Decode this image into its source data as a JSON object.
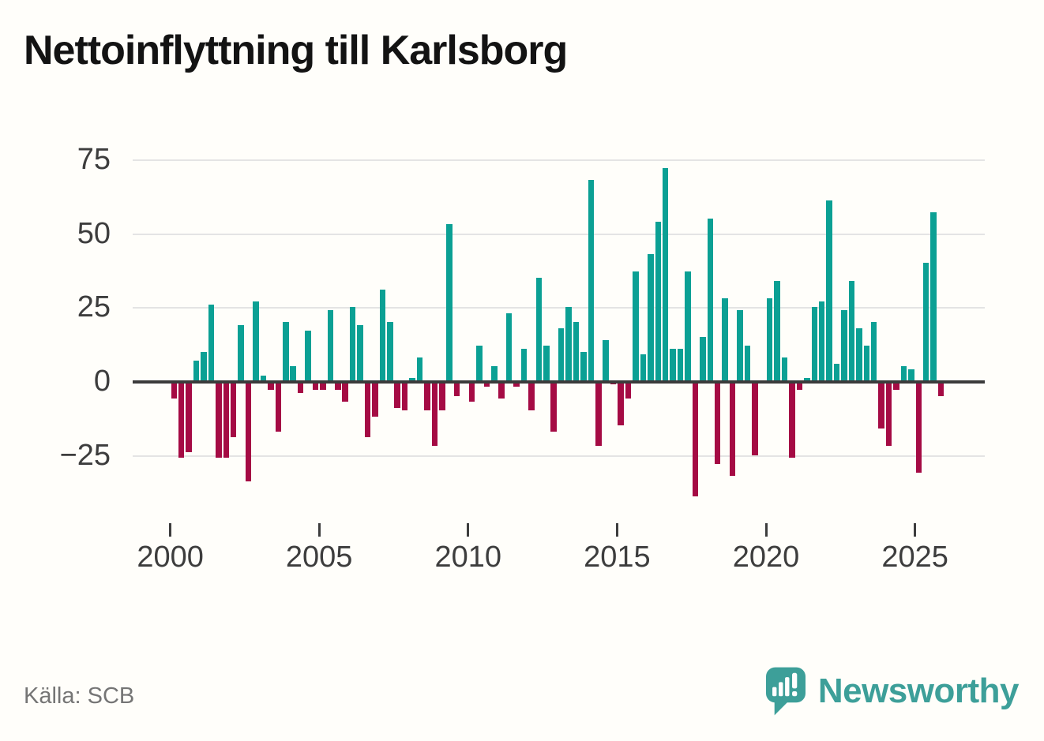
{
  "title": "Nettoinflyttning till Karlsborg",
  "source": "Källa: SCB",
  "brand": {
    "wordmark": "Newsworthy",
    "logo_icon": "bar-chart-speech-bubble-icon",
    "color": "#3d9f99"
  },
  "colors": {
    "positive": "#0ba094",
    "negative": "#a50b44",
    "zero_line": "#3b3b3b",
    "gridline": "#e4e4e4",
    "axis_text": "#3d3d3d",
    "title_text": "#131313",
    "source_text": "#757575",
    "background": "#fffefa"
  },
  "chart_data": {
    "type": "bar",
    "title": "Nettoinflyttning till Karlsborg",
    "frequency": "quarterly",
    "x_start": "2000-Q1",
    "x_end": "2025-Q4",
    "x_tick_labels": [
      "2000",
      "2005",
      "2010",
      "2015",
      "2020",
      "2025"
    ],
    "y_gridlines": [
      75,
      50,
      25,
      0,
      -25
    ],
    "y_tick_labels": [
      "75",
      "50",
      "25",
      "0",
      "−25"
    ],
    "ylim": [
      -42,
      78
    ],
    "grid": true,
    "legend": false,
    "positive_color": "#0ba094",
    "negative_color": "#a50b44",
    "values": [
      -6,
      -26,
      -24,
      7,
      10,
      26,
      -26,
      -26,
      -19,
      19,
      -34,
      27,
      2,
      -3,
      -17,
      20,
      5,
      -4,
      17,
      -3,
      -3,
      24,
      -3,
      -7,
      25,
      19,
      -19,
      -12,
      31,
      20,
      -9,
      -10,
      1,
      8,
      -10,
      -22,
      -10,
      53,
      -5,
      0,
      -7,
      12,
      -2,
      5,
      -6,
      23,
      -2,
      11,
      -10,
      35,
      12,
      -17,
      18,
      25,
      20,
      10,
      68,
      -22,
      14,
      -1,
      -15,
      -6,
      37,
      9,
      43,
      54,
      72,
      11,
      11,
      37,
      -39,
      15,
      55,
      -28,
      28,
      -32,
      24,
      12,
      -25,
      0,
      28,
      34,
      8,
      -26,
      -3,
      1,
      25,
      27,
      61,
      6,
      24,
      34,
      18,
      12,
      20,
      -16,
      -22,
      -3,
      5,
      4,
      -31,
      40,
      57,
      -5
    ]
  }
}
